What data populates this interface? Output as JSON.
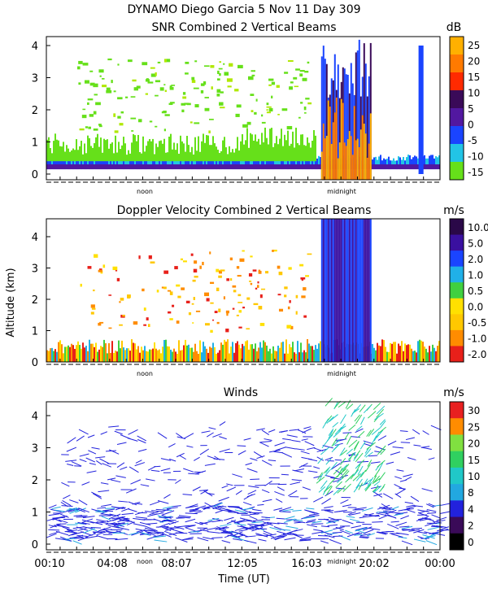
{
  "header": {
    "line1": "DYNAMO Diego Garcia   5 Nov 11 Day 309"
  },
  "y_axis_label": "Altitude (km)",
  "x_axis_label": "Time (UT)",
  "time_ticks": [
    "00:10",
    "04:08",
    "08:07",
    "12:05",
    "16:03",
    "20:02",
    "00:00"
  ],
  "day_markers": [
    "noon",
    "midnight"
  ],
  "altitude_ticks": [
    "0",
    "1",
    "2",
    "3",
    "4"
  ],
  "colors": {
    "snr_scale": [
      "#66e01a",
      "#22c4e6",
      "#1a44ff",
      "#5218a0",
      "#3a0a58",
      "#ff2a00",
      "#ff7a00",
      "#ffb000"
    ],
    "doppler_scale": [
      "#e8201a",
      "#ff8c00",
      "#ffc800",
      "#ffe000",
      "#40d040",
      "#20b0e8",
      "#1a44ff",
      "#3a10a0",
      "#2a0848"
    ],
    "wind_scale": [
      "#000000",
      "#3a0a58",
      "#2222dd",
      "#22a8e0",
      "#20c8c8",
      "#30d060",
      "#80e040",
      "#ff8c00",
      "#e82020"
    ]
  },
  "chart_data": [
    {
      "type": "heatmap",
      "name": "snr",
      "title": "SNR Combined 2 Vertical Beams",
      "units": "dB",
      "ylabel": "Altitude (km)",
      "ylim": [
        0,
        4.6
      ],
      "xlim": [
        0.167,
        24.0
      ],
      "colorbar": {
        "labels": [
          "25",
          "20",
          "15",
          "10",
          "5",
          "0",
          "-5",
          "-10",
          "-15"
        ],
        "colors": [
          "#ffb000",
          "#ff7a00",
          "#ff2a00",
          "#3a0a58",
          "#5218a0",
          "#1a44ff",
          "#22c4e6",
          "#66e01a"
        ]
      },
      "features": [
        {
          "desc": "persistent low-level return",
          "time_range": [
            0.167,
            24.0
          ],
          "alt_range": [
            0.15,
            0.5
          ],
          "snr_db": 8
        },
        {
          "desc": "boundary layer green return",
          "time_range": [
            0.167,
            16.5
          ],
          "alt_range": [
            0.4,
            1.2
          ],
          "snr_db": -12
        },
        {
          "desc": "isolated echoes",
          "time_range": [
            2.0,
            16.0
          ],
          "alt_range": [
            1.3,
            3.6
          ],
          "snr_db": -13
        },
        {
          "desc": "precipitation event",
          "time_range": [
            16.8,
            19.8
          ],
          "alt_range": [
            0.0,
            4.6
          ],
          "snr_db": 25
        },
        {
          "desc": "late tower",
          "time_range": [
            22.7,
            23.0
          ],
          "alt_range": [
            0.0,
            4.0
          ],
          "snr_db": 5
        }
      ]
    },
    {
      "type": "heatmap",
      "name": "doppler",
      "title": "Doppler Velocity Combined 2 Vertical Beams",
      "units": "m/s",
      "ylabel": "Altitude (km)",
      "ylim": [
        0,
        4.6
      ],
      "xlim": [
        0.167,
        24.0
      ],
      "colorbar": {
        "labels": [
          "10.0",
          "5.0",
          "2.0",
          "1.0",
          "0.5",
          "0.0",
          "-0.5",
          "-1.0",
          "-2.0"
        ],
        "colors": [
          "#2a0848",
          "#3a10a0",
          "#1a44ff",
          "#20b0e8",
          "#40d040",
          "#ffe000",
          "#ffc800",
          "#ff8c00",
          "#e8201a"
        ]
      },
      "features": [
        {
          "desc": "low-level mixed velocities",
          "time_range": [
            0.167,
            24.0
          ],
          "alt_range": [
            0.0,
            0.9
          ],
          "velocity_ms": 0.0
        },
        {
          "desc": "rain fall speeds",
          "time_range": [
            16.8,
            19.8
          ],
          "alt_range": [
            0.0,
            4.6
          ],
          "velocity_ms": 8.0
        }
      ]
    },
    {
      "type": "scatter",
      "name": "winds",
      "title": "Winds",
      "units": "m/s",
      "ylabel": "Altitude (km)",
      "xlabel": "Time (UT)",
      "ylim": [
        0,
        4.3
      ],
      "xlim": [
        0.167,
        24.0
      ],
      "colorbar": {
        "labels": [
          "30",
          "25",
          "20",
          "15",
          "10",
          "8",
          "4",
          "2",
          "0"
        ],
        "colors": [
          "#e82020",
          "#ff8c00",
          "#80e040",
          "#30d060",
          "#20c8c8",
          "#22a8e0",
          "#2222dd",
          "#3a0a58",
          "#000000"
        ]
      },
      "features": [
        {
          "desc": "dense low wind barbs",
          "time_range": [
            0.167,
            24.0
          ],
          "alt_range": [
            0.1,
            1.2
          ],
          "speed_ms": 5
        },
        {
          "desc": "cyan/green barbs aloft during event",
          "time_range": [
            16.5,
            20.5
          ],
          "alt_range": [
            1.5,
            4.3
          ],
          "speed_ms": 12
        }
      ]
    }
  ]
}
